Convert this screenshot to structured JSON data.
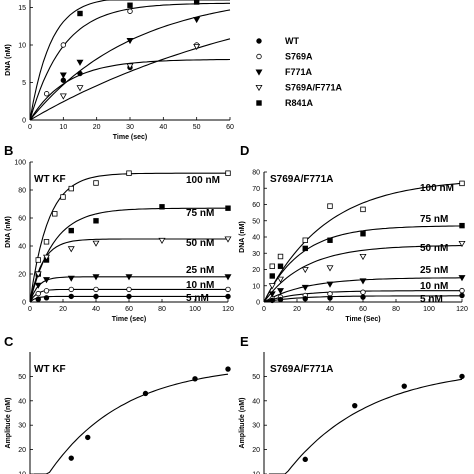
{
  "chart_data": [
    {
      "id": "A",
      "type": "scatter",
      "panel_label": "",
      "title": "",
      "xlabel": "Time (sec)",
      "ylabel": "DNA (nM)",
      "xlim": [
        0,
        60
      ],
      "ylim": [
        0,
        16
      ],
      "xticks": [
        0,
        10,
        20,
        30,
        40,
        50,
        60
      ],
      "yticks": [
        0,
        5,
        10,
        15
      ],
      "legend_position": "right",
      "series": [
        {
          "name": "WT",
          "marker": "circle-filled",
          "points": [
            [
              10,
              5.3
            ],
            [
              15,
              6.2
            ],
            [
              30,
              7.0
            ]
          ],
          "curve": {
            "A": 8.1,
            "k": 0.09
          }
        },
        {
          "name": "S769A",
          "marker": "circle-open",
          "points": [
            [
              5,
              3.5
            ],
            [
              10,
              10.0
            ],
            [
              30,
              14.5
            ],
            [
              50,
              10.0
            ]
          ],
          "curve": {
            "A": 15.6,
            "k": 0.1
          }
        },
        {
          "name": "F771A",
          "marker": "triangle-down-filled",
          "points": [
            [
              10,
              6.0
            ],
            [
              15,
              7.7
            ],
            [
              30,
              10.6
            ],
            [
              50,
              13.4
            ]
          ],
          "curve": {
            "A": 17.2,
            "k": 0.032
          }
        },
        {
          "name": "S769A/F771A",
          "marker": "triangle-down-open",
          "points": [
            [
              10,
              3.2
            ],
            [
              15,
              4.3
            ],
            [
              30,
              7.2
            ],
            [
              50,
              9.8
            ]
          ],
          "curve": {
            "A": 20.0,
            "k": 0.013
          }
        },
        {
          "name": "R841A",
          "marker": "square-filled",
          "points": [
            [
              15,
              14.2
            ],
            [
              30,
              15.3
            ],
            [
              50,
              15.8
            ]
          ],
          "curve": {
            "A": 16.4,
            "k": 0.16
          }
        }
      ]
    },
    {
      "id": "B",
      "type": "scatter",
      "panel_label": "B",
      "title": "WT KF",
      "xlabel": "Time (sec)",
      "ylabel": "DNA (nM)",
      "xlim": [
        0,
        120
      ],
      "ylim": [
        0,
        100
      ],
      "xticks": [
        0,
        20,
        40,
        60,
        80,
        100,
        120
      ],
      "yticks": [
        0,
        20,
        40,
        60,
        80,
        100
      ],
      "series": [
        {
          "name": "100 nM",
          "marker": "square-open",
          "label": "100 nM",
          "points": [
            [
              5,
              30
            ],
            [
              10,
              43
            ],
            [
              15,
              63
            ],
            [
              20,
              75
            ],
            [
              25,
              81
            ],
            [
              40,
              85
            ],
            [
              60,
              92
            ],
            [
              120,
              92
            ]
          ],
          "curve": {
            "A": 92,
            "k": 0.09
          }
        },
        {
          "name": "75 nM",
          "marker": "square-filled",
          "label": "75 nM",
          "points": [
            [
              5,
              20
            ],
            [
              10,
              30
            ],
            [
              25,
              51
            ],
            [
              40,
              58
            ],
            [
              80,
              68
            ],
            [
              120,
              67
            ]
          ],
          "curve": {
            "A": 67,
            "k": 0.07
          }
        },
        {
          "name": "50 nM",
          "marker": "triangle-down-open",
          "label": "50 nM",
          "points": [
            [
              5,
              20
            ],
            [
              10,
              32
            ],
            [
              25,
              38
            ],
            [
              40,
              42
            ],
            [
              80,
              44
            ],
            [
              120,
              45
            ]
          ],
          "curve": {
            "A": 45,
            "k": 0.13
          }
        },
        {
          "name": "25 nM",
          "marker": "triangle-down-filled",
          "label": "25 nM",
          "points": [
            [
              5,
              12
            ],
            [
              10,
              16
            ],
            [
              25,
              17
            ],
            [
              40,
              18
            ],
            [
              60,
              18
            ],
            [
              120,
              18
            ]
          ],
          "curve": {
            "A": 18,
            "k": 0.2
          }
        },
        {
          "name": "10 nM",
          "marker": "circle-open",
          "label": "10 nM",
          "points": [
            [
              5,
              6
            ],
            [
              10,
              8
            ],
            [
              25,
              9
            ],
            [
              40,
              9
            ],
            [
              60,
              9
            ],
            [
              120,
              9
            ]
          ],
          "curve": {
            "A": 9,
            "k": 0.25
          }
        },
        {
          "name": "5 nM",
          "marker": "circle-filled",
          "label": "5 nM",
          "points": [
            [
              5,
              2
            ],
            [
              10,
              3
            ],
            [
              25,
              4
            ],
            [
              40,
              4
            ],
            [
              60,
              4
            ],
            [
              120,
              4
            ]
          ],
          "curve": {
            "A": 4,
            "k": 0.3
          }
        }
      ]
    },
    {
      "id": "D",
      "type": "scatter",
      "panel_label": "D",
      "title": "S769A/F771A",
      "xlabel": "Time (Sec)",
      "ylabel": "DNA (nM)",
      "xlim": [
        0,
        120
      ],
      "ylim": [
        0,
        80
      ],
      "xticks": [
        0,
        20,
        40,
        60,
        80,
        100,
        120
      ],
      "yticks": [
        0,
        10,
        20,
        30,
        40,
        50,
        60,
        70,
        80
      ],
      "series": [
        {
          "name": "100 nM",
          "marker": "square-open",
          "label": "100 nM",
          "points": [
            [
              5,
              22
            ],
            [
              10,
              28
            ],
            [
              25,
              38
            ],
            [
              40,
              59
            ],
            [
              60,
              57
            ],
            [
              120,
              73
            ]
          ],
          "curve": {
            "A": 76,
            "k": 0.027
          }
        },
        {
          "name": "75 nM",
          "marker": "square-filled",
          "label": "75 nM",
          "points": [
            [
              5,
              16
            ],
            [
              10,
              22
            ],
            [
              25,
              33
            ],
            [
              40,
              38
            ],
            [
              60,
              42
            ],
            [
              120,
              47
            ]
          ],
          "curve": {
            "A": 47,
            "k": 0.045
          }
        },
        {
          "name": "50 nM",
          "marker": "triangle-down-open",
          "label": "50 nM",
          "points": [
            [
              5,
              10
            ],
            [
              10,
              14
            ],
            [
              25,
              20
            ],
            [
              40,
              21
            ],
            [
              60,
              28
            ],
            [
              120,
              36
            ]
          ],
          "curve": {
            "A": 35,
            "k": 0.04
          }
        },
        {
          "name": "25 nM",
          "marker": "triangle-down-filled",
          "label": "25 nM",
          "points": [
            [
              5,
              5
            ],
            [
              10,
              7
            ],
            [
              25,
              9
            ],
            [
              40,
              11
            ],
            [
              60,
              13
            ],
            [
              120,
              15
            ]
          ],
          "curve": {
            "A": 15,
            "k": 0.04
          }
        },
        {
          "name": "10 nM",
          "marker": "circle-open",
          "label": "10 nM",
          "points": [
            [
              5,
              2
            ],
            [
              10,
              3
            ],
            [
              25,
              4
            ],
            [
              40,
              5
            ],
            [
              60,
              6
            ],
            [
              120,
              7
            ]
          ],
          "curve": {
            "A": 7,
            "k": 0.05
          }
        },
        {
          "name": "5 nM",
          "marker": "circle-filled",
          "label": "5 nM",
          "points": [
            [
              5,
              1
            ],
            [
              10,
              1.5
            ],
            [
              25,
              2
            ],
            [
              40,
              2.5
            ],
            [
              60,
              3
            ],
            [
              120,
              4
            ]
          ],
          "curve": {
            "A": 3.8,
            "k": 0.05
          }
        }
      ]
    },
    {
      "id": "C",
      "type": "scatter",
      "panel_label": "C",
      "title": "WT KF",
      "xlabel": "",
      "ylabel": "Amplitude (nM)",
      "xlim": [
        0,
        120
      ],
      "ylim": [
        10,
        60
      ],
      "yticks": [
        10,
        20,
        30,
        40,
        50
      ],
      "series": [
        {
          "name": "",
          "marker": "circle-filled",
          "points": [
            [
              10,
              10.0
            ],
            [
              25,
              16.5
            ],
            [
              35,
              25.0
            ],
            [
              70,
              43.0
            ],
            [
              100,
              49.0
            ],
            [
              120,
              53.0
            ]
          ],
          "curve": {
            "A": 55,
            "k": 0.022,
            "x0": 2
          }
        }
      ]
    },
    {
      "id": "E",
      "type": "scatter",
      "panel_label": "E",
      "title": "S769A/F771A",
      "xlabel": "",
      "ylabel": "Amplitude (nM)",
      "xlim": [
        0,
        120
      ],
      "ylim": [
        10,
        60
      ],
      "yticks": [
        10,
        20,
        30,
        40,
        50
      ],
      "series": [
        {
          "name": "",
          "marker": "circle-filled",
          "points": [
            [
              10,
              10.0
            ],
            [
              25,
              16.0
            ],
            [
              55,
              38.0
            ],
            [
              85,
              46.0
            ],
            [
              120,
              50.0
            ]
          ],
          "curve": {
            "A": 54,
            "k": 0.02,
            "x0": 3
          }
        }
      ]
    }
  ]
}
